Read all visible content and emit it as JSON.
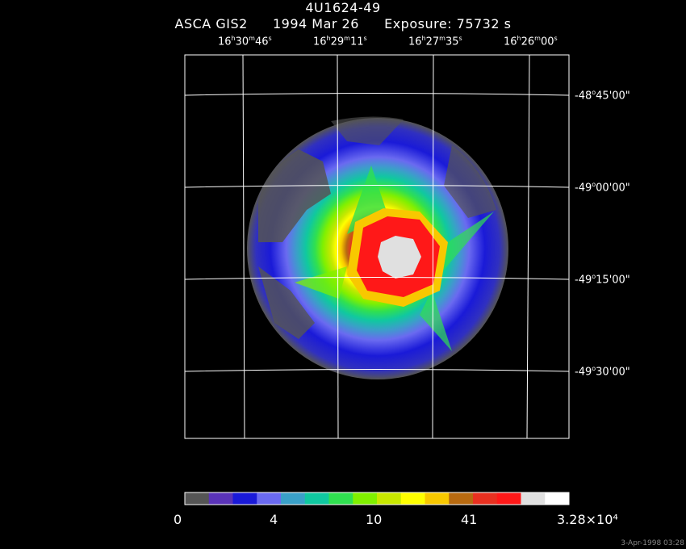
{
  "header": {
    "title": "4U1624-49",
    "instrument": "ASCA GIS2",
    "date": "1994 Mar 26",
    "exposure": "Exposure: 75732 s"
  },
  "ra_ticks": [
    {
      "h": "16",
      "m": "30",
      "s": "46"
    },
    {
      "h": "16",
      "m": "29",
      "s": "11"
    },
    {
      "h": "16",
      "m": "27",
      "s": "35"
    },
    {
      "h": "16",
      "m": "26",
      "s": "00"
    }
  ],
  "dec_ticks": [
    {
      "d": "-48",
      "m": "45",
      "s": "00\""
    },
    {
      "d": "-49",
      "m": "00",
      "s": "00\""
    },
    {
      "d": "-49",
      "m": "15",
      "s": "00\""
    },
    {
      "d": "-49",
      "m": "30",
      "s": "00\""
    }
  ],
  "colorbar": {
    "colors": [
      "#555555",
      "#5a33b8",
      "#1a1ad8",
      "#6a6af0",
      "#3aa0c8",
      "#10c8a0",
      "#30e050",
      "#80f000",
      "#c8e800",
      "#ffff00",
      "#f8c800",
      "#b86a10",
      "#e83020",
      "#ff1818",
      "#e0e0e0",
      "#ffffff"
    ],
    "labels": [
      "0",
      "4",
      "10",
      "41",
      "3.28×10⁴"
    ]
  },
  "footer": {
    "timestamp": "3-Apr-1998 03:28"
  }
}
